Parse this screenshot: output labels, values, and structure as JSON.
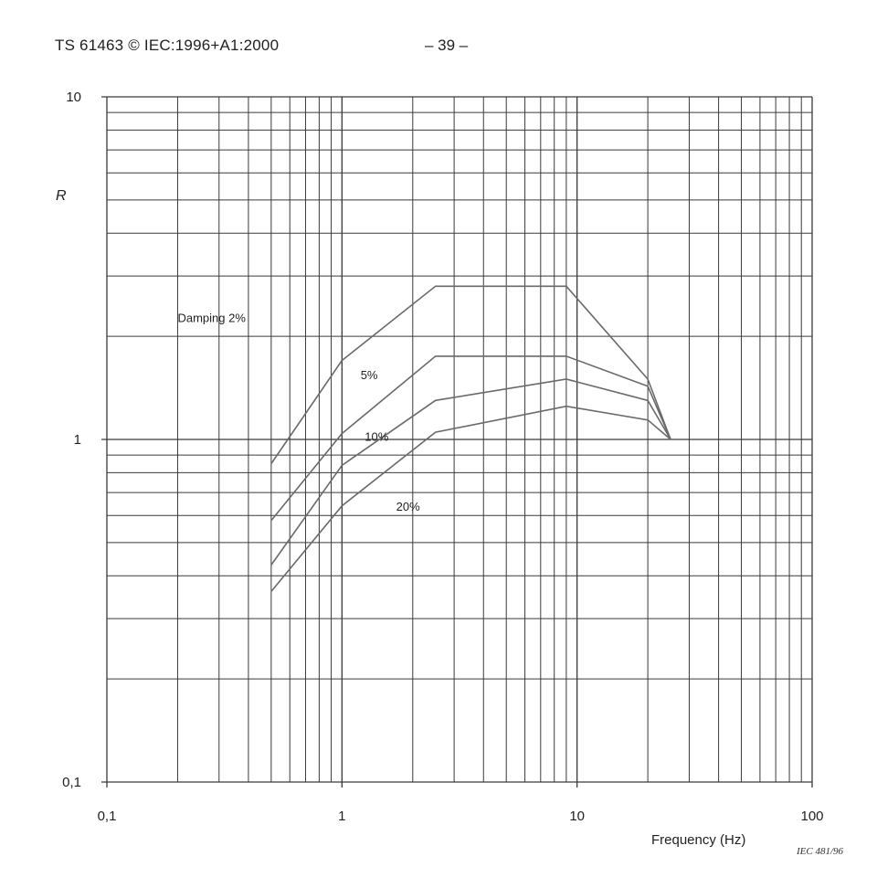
{
  "header": {
    "document": "TS 61463 © IEC:1996+A1:2000",
    "page": "– 39 –"
  },
  "figure_ref": "IEC  481/96",
  "chart_data": {
    "type": "line",
    "title": "",
    "xlabel": "Frequency (Hz)",
    "ylabel": "R",
    "xscale": "log",
    "yscale": "log",
    "xlim": [
      0.1,
      100
    ],
    "ylim": [
      0.1,
      10
    ],
    "grid": true,
    "xticks": [
      {
        "value": 0.1,
        "label": "0,1"
      },
      {
        "value": 1,
        "label": "1"
      },
      {
        "value": 10,
        "label": "10"
      },
      {
        "value": 100,
        "label": "100"
      }
    ],
    "yticks": [
      {
        "value": 0.1,
        "label": "0,1"
      },
      {
        "value": 1,
        "label": "1"
      },
      {
        "value": 10,
        "label": "10"
      }
    ],
    "series": [
      {
        "name": "Damping  2%",
        "label_at": [
          0.2,
          2.2
        ],
        "points": [
          [
            0.5,
            0.85
          ],
          [
            1,
            1.7
          ],
          [
            2.5,
            2.8
          ],
          [
            9,
            2.8
          ],
          [
            20,
            1.5
          ],
          [
            25,
            1.0
          ]
        ]
      },
      {
        "name": "5%",
        "label_at": [
          1.2,
          1.5
        ],
        "points": [
          [
            0.5,
            0.58
          ],
          [
            1,
            1.04
          ],
          [
            2.5,
            1.75
          ],
          [
            9,
            1.75
          ],
          [
            20,
            1.43
          ],
          [
            25,
            1.0
          ]
        ]
      },
      {
        "name": "10%",
        "label_at": [
          1.25,
          0.99
        ],
        "points": [
          [
            0.5,
            0.43
          ],
          [
            1,
            0.84
          ],
          [
            2.5,
            1.3
          ],
          [
            9,
            1.5
          ],
          [
            20,
            1.3
          ],
          [
            25,
            1.0
          ]
        ]
      },
      {
        "name": "20%",
        "label_at": [
          1.7,
          0.62
        ],
        "points": [
          [
            0.5,
            0.36
          ],
          [
            1,
            0.64
          ],
          [
            2.5,
            1.05
          ],
          [
            9,
            1.25
          ],
          [
            20,
            1.14
          ],
          [
            25,
            1.0
          ]
        ]
      }
    ]
  }
}
